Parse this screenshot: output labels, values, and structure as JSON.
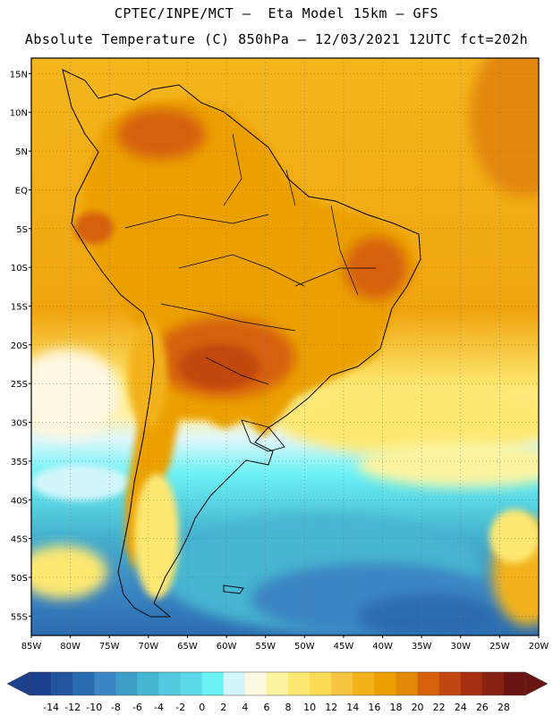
{
  "header": {
    "line1": "CPTEC/INPE/MCT —  Eta Model 15km — GFS",
    "line2": "Absolute Temperature (C) 850hPa — 12/03/2021 12UTC fct=202h"
  },
  "map": {
    "lat_labels": [
      "15N",
      "10N",
      "5N",
      "EQ",
      "5S",
      "10S",
      "15S",
      "20S",
      "25S",
      "30S",
      "35S",
      "40S",
      "45S",
      "50S",
      "55S"
    ],
    "lat_values": [
      15,
      10,
      5,
      0,
      -5,
      -10,
      -15,
      -20,
      -25,
      -30,
      -35,
      -40,
      -45,
      -50,
      -55
    ],
    "lon_labels": [
      "85W",
      "80W",
      "75W",
      "70W",
      "65W",
      "60W",
      "55W",
      "50W",
      "45W",
      "40W",
      "35W",
      "30W",
      "25W",
      "20W"
    ],
    "lon_values": [
      -85,
      -80,
      -75,
      -70,
      -65,
      -60,
      -55,
      -50,
      -45,
      -40,
      -35,
      -30,
      -25,
      -20
    ],
    "extent": {
      "lon_min": -85,
      "lon_max": -20,
      "lat_min": -57.5,
      "lat_max": 17
    },
    "icons": {
      "continent": "south-america-outline",
      "grid": "dotted-graticule"
    }
  },
  "colorbar": {
    "labels": [
      "-14",
      "-12",
      "-10",
      "-8",
      "-6",
      "-4",
      "-2",
      "0",
      "2",
      "4",
      "6",
      "8",
      "10",
      "12",
      "14",
      "16",
      "18",
      "20",
      "22",
      "24",
      "26",
      "28"
    ],
    "colors": [
      "#1c3f8e",
      "#23559f",
      "#2b6cb0",
      "#3a85c2",
      "#3f9ec8",
      "#47b6d1",
      "#55c9df",
      "#5bd9ea",
      "#6bf2f5",
      "#d3f6fb",
      "#fff8e2",
      "#fdf4a0",
      "#fde872",
      "#fcdb55",
      "#f7c640",
      "#f3b21a",
      "#eba000",
      "#e38707",
      "#d6610a",
      "#c24610",
      "#a52f10",
      "#862315",
      "#6b1414"
    ],
    "icons": {
      "left": "arrow-left-icon",
      "right": "arrow-right-icon"
    }
  }
}
